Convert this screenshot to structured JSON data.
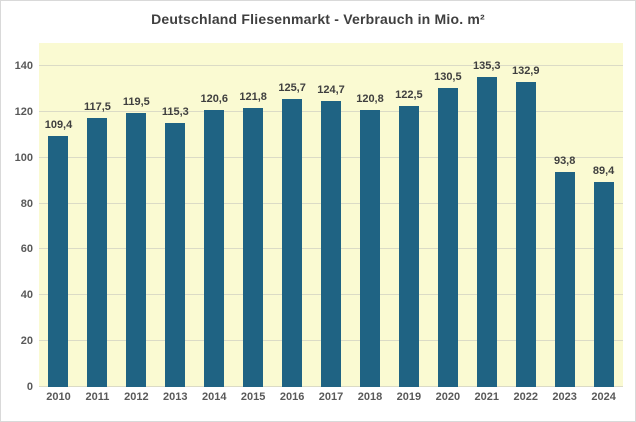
{
  "window": {
    "background": "#ffffff",
    "border_color": "#d9d9d9"
  },
  "chart_data": {
    "type": "bar",
    "title": "Deutschland Fliesenmarkt - Verbrauch in Mio. m²",
    "categories": [
      "2010",
      "2011",
      "2012",
      "2013",
      "2014",
      "2015",
      "2016",
      "2017",
      "2018",
      "2019",
      "2020",
      "2021",
      "2022",
      "2023",
      "2024"
    ],
    "values": [
      109.4,
      117.5,
      119.5,
      115.3,
      120.6,
      121.8,
      125.7,
      124.7,
      120.8,
      122.5,
      130.5,
      135.3,
      132.9,
      93.8,
      89.4
    ],
    "value_labels": [
      "109,4",
      "117,5",
      "119,5",
      "115,3",
      "120,6",
      "121,8",
      "125,7",
      "124,7",
      "120,8",
      "122,5",
      "130,5",
      "135,3",
      "132,9",
      "93,8",
      "89,4"
    ],
    "xlabel": "",
    "ylabel": "",
    "ylim": [
      0,
      150
    ],
    "yticks": [
      0,
      20,
      40,
      60,
      80,
      100,
      120,
      140
    ],
    "grid": "horizontal-major",
    "legend": "none",
    "bar_color": "#1f6383",
    "plot_background": "#fafad2",
    "gridline_color": "#dbdbc6",
    "label_color": "#3f3f3f",
    "axis_text_color": "#595959"
  }
}
